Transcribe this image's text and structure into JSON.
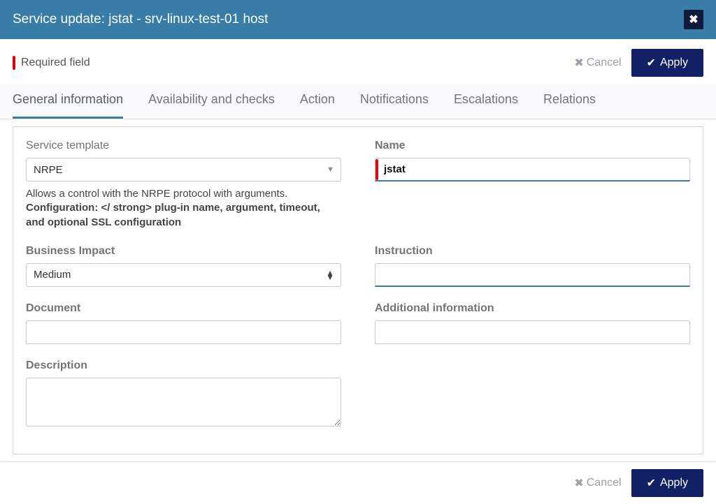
{
  "colors": {
    "header_bg": "#377da7",
    "apply_bg": "#122066",
    "required_marker": "#d9001b",
    "tab_active_underline": "#377da7",
    "input_focus_underline": "#377da7"
  },
  "window": {
    "title": "Service update: jstat - srv-linux-test-01 host"
  },
  "topbar": {
    "required_label": "Required field",
    "cancel_label": "Cancel",
    "apply_label": "Apply"
  },
  "tabs": [
    {
      "id": "general",
      "label": "General information",
      "active": true
    },
    {
      "id": "availability",
      "label": "Availability and checks",
      "active": false
    },
    {
      "id": "action",
      "label": "Action",
      "active": false
    },
    {
      "id": "notifications",
      "label": "Notifications",
      "active": false
    },
    {
      "id": "escalations",
      "label": "Escalations",
      "active": false
    },
    {
      "id": "relations",
      "label": "Relations",
      "active": false
    }
  ],
  "form": {
    "service_template": {
      "label": "Service template",
      "value": "NRPE",
      "help_plain": "Allows a control with the NRPE protocol with arguments.",
      "help_bold": "Configuration: </ strong> plug-in name, argument, timeout, and optional SSL configuration"
    },
    "name": {
      "label": "Name",
      "value": "jstat",
      "required": true
    },
    "business_impact": {
      "label": "Business Impact",
      "value": "Medium"
    },
    "instruction": {
      "label": "Instruction",
      "value": ""
    },
    "document": {
      "label": "Document",
      "value": ""
    },
    "additional_info": {
      "label": "Additional information",
      "value": ""
    },
    "description": {
      "label": "Description",
      "value": ""
    }
  },
  "footer": {
    "cancel_label": "Cancel",
    "apply_label": "Apply"
  }
}
